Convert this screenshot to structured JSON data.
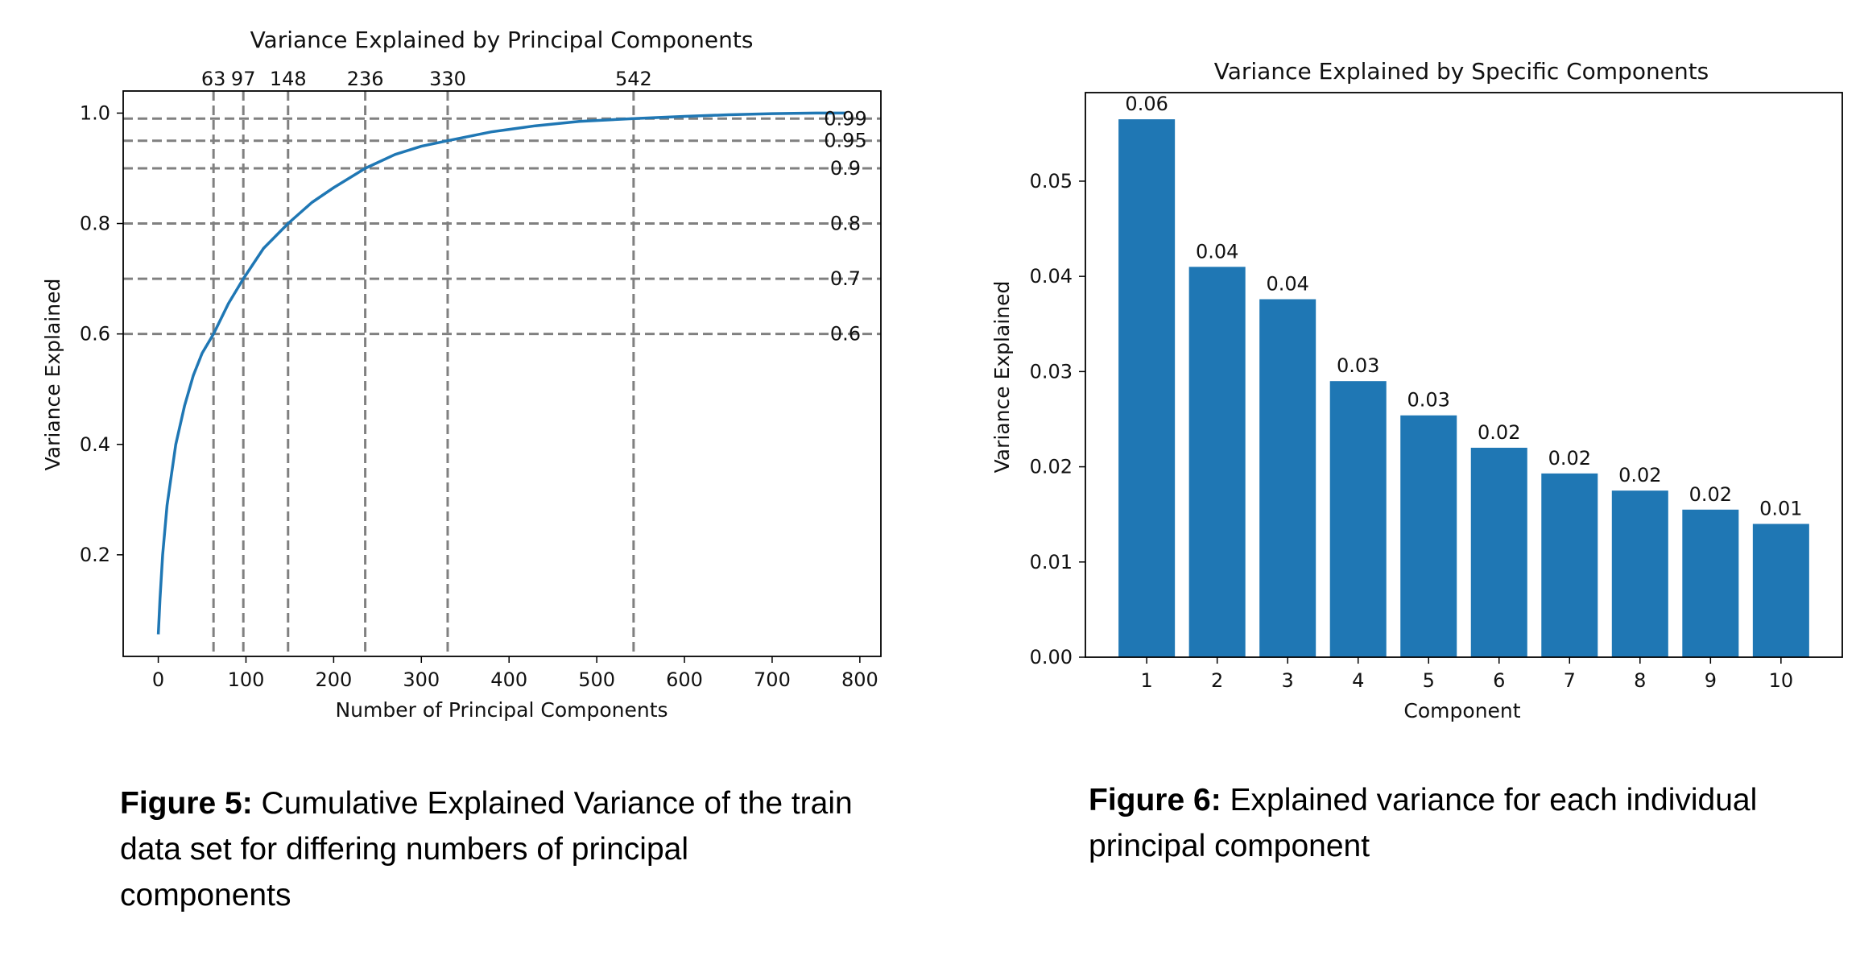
{
  "chart_data": [
    {
      "type": "line",
      "title": "Variance Explained by Principal Components",
      "xlabel": "Number of Principal Components",
      "ylabel": "Variance Explained",
      "xlim": [
        -40,
        824
      ],
      "ylim": [
        0.016,
        1.04
      ],
      "xticks": [
        "0",
        "100",
        "200",
        "300",
        "400",
        "500",
        "600",
        "700",
        "800"
      ],
      "yticks": [
        "0.2",
        "0.4",
        "0.6",
        "0.8",
        "1.0"
      ],
      "grid": false,
      "color": "#1f77b4",
      "threshold_color": "#808080",
      "x": [
        0,
        2,
        5,
        10,
        20,
        30,
        40,
        50,
        63,
        80,
        97,
        120,
        148,
        175,
        200,
        236,
        270,
        300,
        330,
        380,
        430,
        480,
        542,
        600,
        650,
        700,
        750,
        784
      ],
      "y": [
        0.056,
        0.12,
        0.2,
        0.29,
        0.4,
        0.47,
        0.525,
        0.565,
        0.6,
        0.655,
        0.7,
        0.755,
        0.8,
        0.838,
        0.865,
        0.9,
        0.925,
        0.94,
        0.95,
        0.966,
        0.977,
        0.985,
        0.99,
        0.994,
        0.997,
        0.999,
        1.0,
        1.0
      ],
      "thresholds": [
        {
          "y": 0.6,
          "label": "0.6",
          "x": 63,
          "x_label": "63"
        },
        {
          "y": 0.7,
          "label": "0.7",
          "x": 97,
          "x_label": "97"
        },
        {
          "y": 0.8,
          "label": "0.8",
          "x": 148,
          "x_label": "148"
        },
        {
          "y": 0.9,
          "label": "0.9",
          "x": 236,
          "x_label": "236"
        },
        {
          "y": 0.95,
          "label": "0.95",
          "x": 330,
          "x_label": "330"
        },
        {
          "y": 0.99,
          "label": "0.99",
          "x": 542,
          "x_label": "542"
        }
      ]
    },
    {
      "type": "bar",
      "title": "Variance Explained by Specific Components",
      "xlabel": "Component",
      "ylabel": "Variance Explained",
      "ylim": [
        0,
        0.0593
      ],
      "yticks": [
        "0.00",
        "0.01",
        "0.02",
        "0.03",
        "0.04",
        "0.05"
      ],
      "grid": false,
      "color": "#1f77b4",
      "categories": [
        "1",
        "2",
        "3",
        "4",
        "5",
        "6",
        "7",
        "8",
        "9",
        "10"
      ],
      "values": [
        0.0565,
        0.041,
        0.0376,
        0.029,
        0.0254,
        0.022,
        0.0193,
        0.0175,
        0.0155,
        0.014
      ],
      "data_labels": [
        "0.06",
        "0.04",
        "0.04",
        "0.03",
        "0.03",
        "0.02",
        "0.02",
        "0.02",
        "0.02",
        "0.01"
      ]
    }
  ],
  "captions": {
    "fig5": {
      "label": "Figure 5:",
      "text": "Cumulative Explained Variance of the train data set for differing numbers of principal components"
    },
    "fig6": {
      "label": "Figure 6:",
      "text": "Explained variance for each individual principal component"
    }
  }
}
